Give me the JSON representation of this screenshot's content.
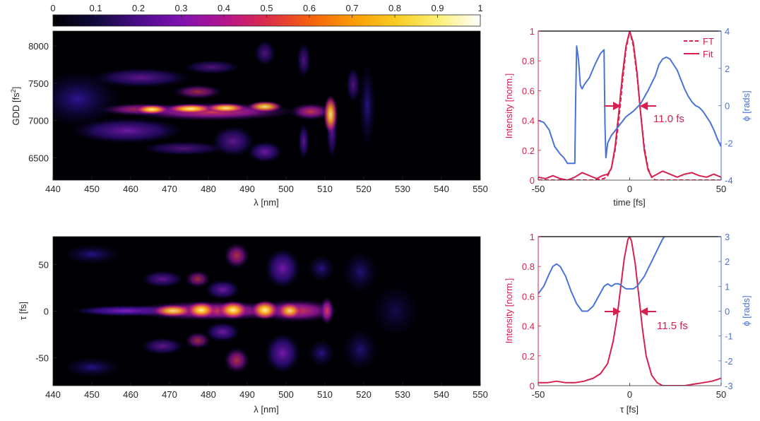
{
  "colorbar": {
    "ticks": [
      "0",
      "0.1",
      "0.2",
      "0.3",
      "0.4",
      "0.5",
      "0.6",
      "0.7",
      "0.8",
      "0.9",
      "1"
    ],
    "colormap": "inferno-like"
  },
  "chart_data": [
    {
      "id": "frog_gdd",
      "type": "heatmap",
      "xlabel": "λ [nm]",
      "ylabel_main": "GDD [fs",
      "ylabel_sup": "2",
      "ylabel_end": "]",
      "xlim": [
        440,
        550
      ],
      "ylim": [
        6200,
        8200
      ],
      "xticks": [
        "440",
        "450",
        "460",
        "470",
        "480",
        "490",
        "500",
        "510",
        "520",
        "530",
        "540",
        "550"
      ],
      "yticks": [
        "6500",
        "7000",
        "7500",
        "8000"
      ]
    },
    {
      "id": "frog_tau",
      "type": "heatmap",
      "xlabel": "λ [nm]",
      "ylabel": "τ [fs]",
      "xlim": [
        440,
        550
      ],
      "ylim": [
        -80,
        80
      ],
      "xticks": [
        "440",
        "450",
        "460",
        "470",
        "480",
        "490",
        "500",
        "510",
        "520",
        "530",
        "540",
        "550"
      ],
      "yticks": [
        "-50",
        "0",
        "50"
      ]
    },
    {
      "id": "pulse_top",
      "type": "line",
      "xlabel": "time [fs]",
      "ylabel_left": "Intensity [norm.]",
      "ylabel_right": "ϕ [rads]",
      "xlim": [
        -50,
        50
      ],
      "ylim_left": [
        0,
        1
      ],
      "ylim_right": [
        -4,
        4
      ],
      "xticks": [
        "-50",
        "0",
        "50"
      ],
      "yticks_left": [
        "0",
        "0.2",
        "0.4",
        "0.6",
        "0.8",
        "1"
      ],
      "yticks_right": [
        "-4",
        "-2",
        "0",
        "2",
        "4"
      ],
      "legend": [
        "FT",
        "Fit"
      ],
      "annotation": "11.0 fs",
      "series": [
        {
          "name": "Fit",
          "axis": "left",
          "color": "#d6204f",
          "x": [
            -50,
            -46,
            -42,
            -38,
            -34,
            -30,
            -26,
            -22,
            -18,
            -15,
            -12,
            -10,
            -8,
            -6,
            -4,
            -2,
            0,
            2,
            4,
            6,
            8,
            10,
            12,
            15,
            18,
            22,
            26,
            30,
            34,
            38,
            42,
            46,
            50
          ],
          "y": [
            0.02,
            0.01,
            0.03,
            0.01,
            0.0,
            0.02,
            0.05,
            0.03,
            0.01,
            0.03,
            0.04,
            0.08,
            0.22,
            0.45,
            0.7,
            0.9,
            1.0,
            0.92,
            0.72,
            0.45,
            0.2,
            0.07,
            0.02,
            0.04,
            0.06,
            0.04,
            0.02,
            0.04,
            0.05,
            0.03,
            0.02,
            0.04,
            0.02
          ]
        },
        {
          "name": "FT",
          "axis": "left",
          "color": "#d6204f",
          "dashed": true,
          "x": [
            -50,
            -20,
            -14,
            -12,
            -10,
            -8,
            -6,
            -4,
            -2,
            0,
            2,
            4,
            6,
            8,
            10,
            12,
            14,
            20,
            50
          ],
          "y": [
            0.0,
            0.0,
            0.01,
            0.03,
            0.08,
            0.2,
            0.4,
            0.65,
            0.88,
            1.0,
            0.9,
            0.7,
            0.45,
            0.22,
            0.08,
            0.02,
            0.0,
            0.0,
            0.0
          ]
        },
        {
          "name": "phase",
          "axis": "right",
          "color": "#4a73d8",
          "x": [
            -50,
            -47,
            -44,
            -41,
            -38,
            -36,
            -34,
            -32,
            -30,
            -29.5,
            -29,
            -28,
            -27,
            -26,
            -25,
            -22,
            -19,
            -16,
            -14,
            -13.5,
            -13,
            -12,
            -10,
            -6,
            -2,
            2,
            6,
            10,
            14,
            16,
            18,
            20,
            22,
            24,
            26,
            28,
            30,
            32,
            34,
            36,
            38,
            40,
            42,
            44,
            46,
            48,
            50
          ],
          "y": [
            -0.8,
            -0.9,
            -1.3,
            -2.2,
            -2.6,
            -2.8,
            -3.1,
            -3.1,
            -3.1,
            0.5,
            3.2,
            2.5,
            1.1,
            0.9,
            1.1,
            1.5,
            2.2,
            2.8,
            3.0,
            -1.0,
            -2.8,
            -2.0,
            -1.6,
            -1.1,
            -0.6,
            -0.3,
            0.1,
            0.8,
            1.6,
            2.2,
            2.5,
            2.6,
            2.5,
            2.2,
            1.9,
            1.4,
            0.9,
            0.5,
            0.2,
            0.0,
            -0.1,
            -0.3,
            -0.6,
            -0.9,
            -1.3,
            -1.8,
            -2.2
          ]
        }
      ]
    },
    {
      "id": "pulse_bottom",
      "type": "line",
      "xlabel": "τ [fs]",
      "ylabel_left": "Intensity [norm.]",
      "ylabel_right": "ϕ [rads]",
      "xlim": [
        -50,
        50
      ],
      "ylim_left": [
        0,
        1
      ],
      "ylim_right": [
        -3,
        3
      ],
      "xticks": [
        "-50",
        "0",
        "50"
      ],
      "yticks_left": [
        "0",
        "0.2",
        "0.4",
        "0.6",
        "0.8",
        "1"
      ],
      "yticks_right": [
        "-3",
        "-2",
        "-1",
        "0",
        "1",
        "2",
        "3"
      ],
      "annotation": "11.5 fs",
      "series": [
        {
          "name": "Intensity",
          "axis": "left",
          "color": "#d6204f",
          "x": [
            -50,
            -45,
            -40,
            -35,
            -30,
            -25,
            -20,
            -16,
            -12,
            -9,
            -7,
            -5,
            -3,
            -1,
            0,
            1,
            3,
            5,
            7,
            9,
            12,
            15,
            18,
            22,
            26,
            30,
            35,
            40,
            45,
            50
          ],
          "y": [
            0.02,
            0.02,
            0.03,
            0.02,
            0.02,
            0.03,
            0.05,
            0.08,
            0.15,
            0.3,
            0.45,
            0.65,
            0.85,
            0.98,
            1.0,
            0.97,
            0.82,
            0.6,
            0.38,
            0.2,
            0.07,
            0.02,
            0.0,
            0.0,
            0.0,
            0.0,
            0.01,
            0.02,
            0.03,
            0.05
          ]
        },
        {
          "name": "phase",
          "axis": "right",
          "color": "#4a73d8",
          "x": [
            -50,
            -47,
            -44,
            -42,
            -40,
            -38,
            -35,
            -32,
            -29,
            -26,
            -23,
            -20,
            -17,
            -14,
            -12,
            -10,
            -8,
            -6,
            -4,
            -2,
            0,
            2,
            4,
            6,
            8,
            10,
            12,
            14,
            16,
            18,
            20
          ],
          "y": [
            0.7,
            1.0,
            1.5,
            1.8,
            1.9,
            1.8,
            1.4,
            0.8,
            0.3,
            0.0,
            0.0,
            0.2,
            0.6,
            1.0,
            1.1,
            1.0,
            1.1,
            1.1,
            1.0,
            0.9,
            0.9,
            0.9,
            1.0,
            1.2,
            1.4,
            1.7,
            2.0,
            2.3,
            2.6,
            2.9,
            3.1
          ]
        }
      ]
    }
  ]
}
